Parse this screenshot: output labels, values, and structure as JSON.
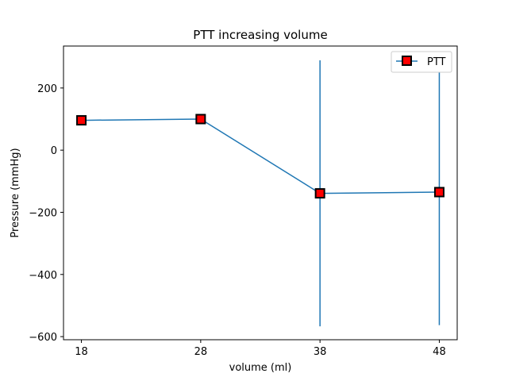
{
  "chart_data": {
    "type": "line",
    "title": "PTT increasing volume",
    "xlabel": "volume (ml)",
    "ylabel": "Pressure (mmHg)",
    "x": [
      18,
      28,
      38,
      48
    ],
    "x_tick_labels": [
      "18",
      "28",
      "38",
      "48"
    ],
    "xlim": [
      16.5,
      49.5
    ],
    "ylim": [
      -610,
      335
    ],
    "y_ticks": [
      200,
      0,
      -200,
      -400,
      -600
    ],
    "y_tick_labels": [
      "200",
      "0",
      "−200",
      "−400",
      "−600"
    ],
    "grid": false,
    "legend_position": "upper right",
    "series": [
      {
        "name": "PTT",
        "values": [
          96,
          100,
          -139,
          -135
        ],
        "error": [
          0,
          0,
          428,
          428
        ],
        "line_color": "#1f77b4",
        "marker": "square",
        "marker_face_color": "#ff0000",
        "marker_edge_color": "#000000"
      }
    ]
  }
}
